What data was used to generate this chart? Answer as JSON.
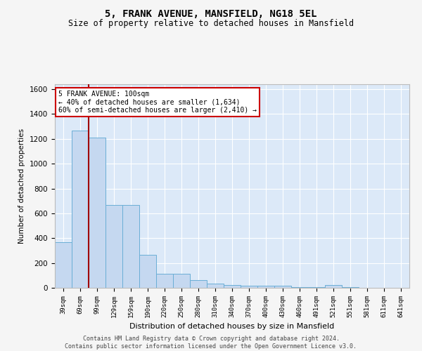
{
  "title": "5, FRANK AVENUE, MANSFIELD, NG18 5EL",
  "subtitle": "Size of property relative to detached houses in Mansfield",
  "xlabel": "Distribution of detached houses by size in Mansfield",
  "ylabel": "Number of detached properties",
  "footer_line1": "Contains HM Land Registry data © Crown copyright and database right 2024.",
  "footer_line2": "Contains public sector information licensed under the Open Government Licence v3.0.",
  "annotation_line1": "5 FRANK AVENUE: 100sqm",
  "annotation_line2": "← 40% of detached houses are smaller (1,634)",
  "annotation_line3": "60% of semi-detached houses are larger (2,410) →",
  "property_bin_index": 2,
  "categories": [
    "39sqm",
    "69sqm",
    "99sqm",
    "129sqm",
    "159sqm",
    "190sqm",
    "220sqm",
    "250sqm",
    "280sqm",
    "310sqm",
    "340sqm",
    "370sqm",
    "400sqm",
    "430sqm",
    "460sqm",
    "491sqm",
    "521sqm",
    "551sqm",
    "581sqm",
    "611sqm",
    "641sqm"
  ],
  "values": [
    370,
    1265,
    1210,
    665,
    665,
    265,
    113,
    113,
    60,
    35,
    20,
    15,
    15,
    15,
    5,
    5,
    20,
    5,
    0,
    0,
    0
  ],
  "bar_color": "#c5d8f0",
  "bar_edge_color": "#6aaed6",
  "highlight_line_color": "#a00000",
  "annotation_box_color": "#ffffff",
  "annotation_box_edge": "#cc0000",
  "background_color": "#dce9f8",
  "grid_color": "#ffffff",
  "fig_background": "#f5f5f5",
  "ylim": [
    0,
    1640
  ],
  "yticks": [
    0,
    200,
    400,
    600,
    800,
    1000,
    1200,
    1400,
    1600
  ]
}
